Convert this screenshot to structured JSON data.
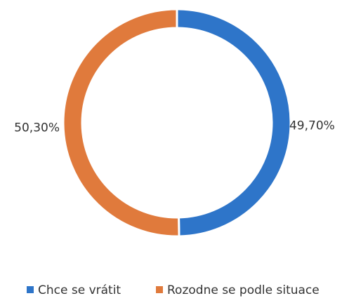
{
  "chart_data": {
    "type": "donut",
    "categories": [
      "Chce se vrátit",
      "Rozodne se podle situace"
    ],
    "values": [
      49.7,
      50.3
    ],
    "value_labels": [
      "49,70%",
      "50,30%"
    ],
    "colors": [
      "#2e75c9",
      "#e07a3c"
    ],
    "legend": "bottom"
  }
}
